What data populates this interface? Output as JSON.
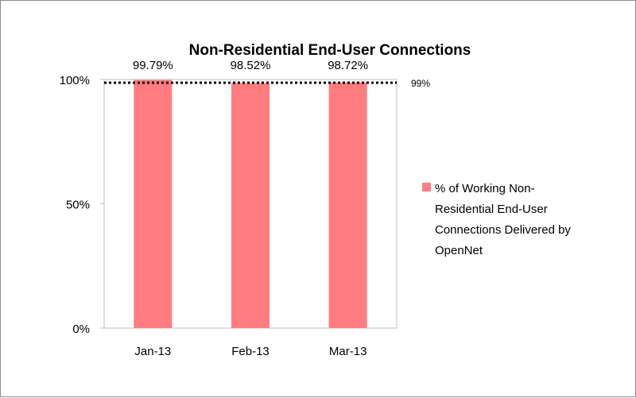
{
  "chart_data": {
    "type": "bar",
    "title": "Non-Residential End-User Connections",
    "categories": [
      "Jan-13",
      "Feb-13",
      "Mar-13"
    ],
    "series": [
      {
        "name": "% of Working Non-Residential End-User Connections Delivered by OpenNet",
        "values": [
          99.79,
          98.52,
          98.72
        ],
        "data_labels": [
          "99.79%",
          "98.52%",
          "98.72%"
        ],
        "color": "#ff7c80"
      }
    ],
    "legend_lines": [
      "% of Working Non-",
      "Residential End-User",
      "Connections Delivered by",
      "OpenNet"
    ],
    "reference_line": {
      "value": 99,
      "label": "99%",
      "style": "dotted",
      "color": "#000000"
    },
    "ylim": [
      0,
      100
    ],
    "yticks": [
      0,
      50,
      100
    ],
    "ytick_labels": [
      "0%",
      "50%",
      "100%"
    ],
    "xlabel": "",
    "ylabel": "",
    "grid": false,
    "legend_position": "right"
  }
}
